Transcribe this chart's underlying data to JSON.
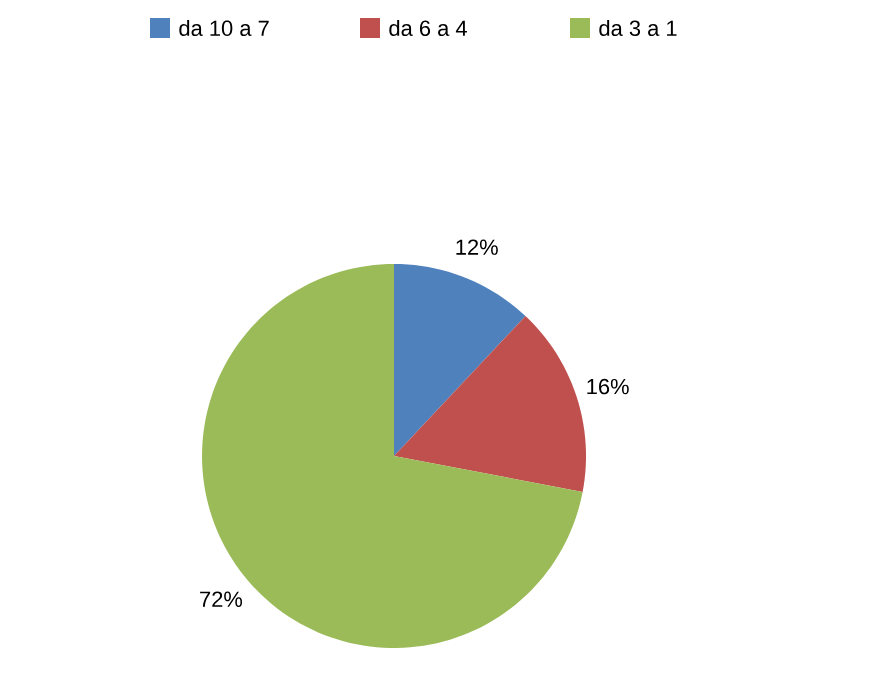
{
  "chart_data": {
    "type": "pie",
    "categories": [
      "da 10 a 7",
      "da 6 a 4",
      "da 3 a 1"
    ],
    "values": [
      12,
      16,
      72
    ],
    "colors": [
      "#4f81bd",
      "#c0504d",
      "#9bbb59"
    ],
    "value_labels": [
      "12%",
      "16%",
      "72%"
    ],
    "legend": "top"
  }
}
